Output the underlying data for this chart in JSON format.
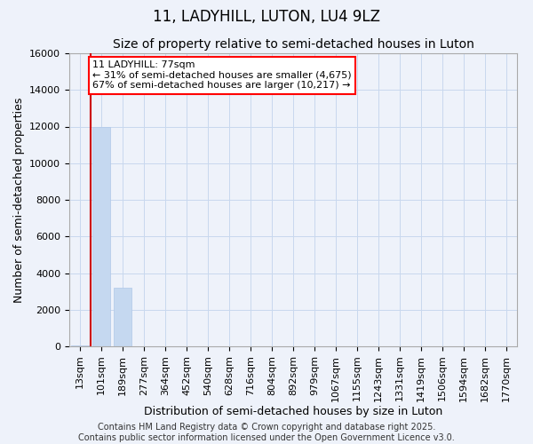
{
  "title": "11, LADYHILL, LUTON, LU4 9LZ",
  "subtitle": "Size of property relative to semi-detached houses in Luton",
  "xlabel": "Distribution of semi-detached houses by size in Luton",
  "ylabel": "Number of semi-detached properties",
  "bar_categories": [
    "13sqm",
    "101sqm",
    "189sqm",
    "277sqm",
    "364sqm",
    "452sqm",
    "540sqm",
    "628sqm",
    "716sqm",
    "804sqm",
    "892sqm",
    "979sqm",
    "1067sqm",
    "1155sqm",
    "1243sqm",
    "1331sqm",
    "1419sqm",
    "1506sqm",
    "1594sqm",
    "1682sqm",
    "1770sqm"
  ],
  "bar_values": [
    50,
    12000,
    3200,
    0,
    0,
    0,
    0,
    0,
    0,
    0,
    0,
    0,
    0,
    0,
    0,
    0,
    0,
    0,
    0,
    0,
    0
  ],
  "bar_color": "#c5d8f0",
  "bar_edge_color": "#b0c8e8",
  "grid_color": "#c8d8ee",
  "background_color": "#eef2fa",
  "ylim": [
    0,
    16000
  ],
  "yticks": [
    0,
    2000,
    4000,
    6000,
    8000,
    10000,
    12000,
    14000,
    16000
  ],
  "vline_color": "#cc0000",
  "annotation_text": "11 LADYHILL: 77sqm\n← 31% of semi-detached houses are smaller (4,675)\n67% of semi-detached houses are larger (10,217) →",
  "annotation_box_color": "white",
  "annotation_box_edge": "red",
  "footer_line1": "Contains HM Land Registry data © Crown copyright and database right 2025.",
  "footer_line2": "Contains public sector information licensed under the Open Government Licence v3.0.",
  "title_fontsize": 12,
  "subtitle_fontsize": 10,
  "axis_label_fontsize": 9,
  "tick_fontsize": 8,
  "footer_fontsize": 7
}
